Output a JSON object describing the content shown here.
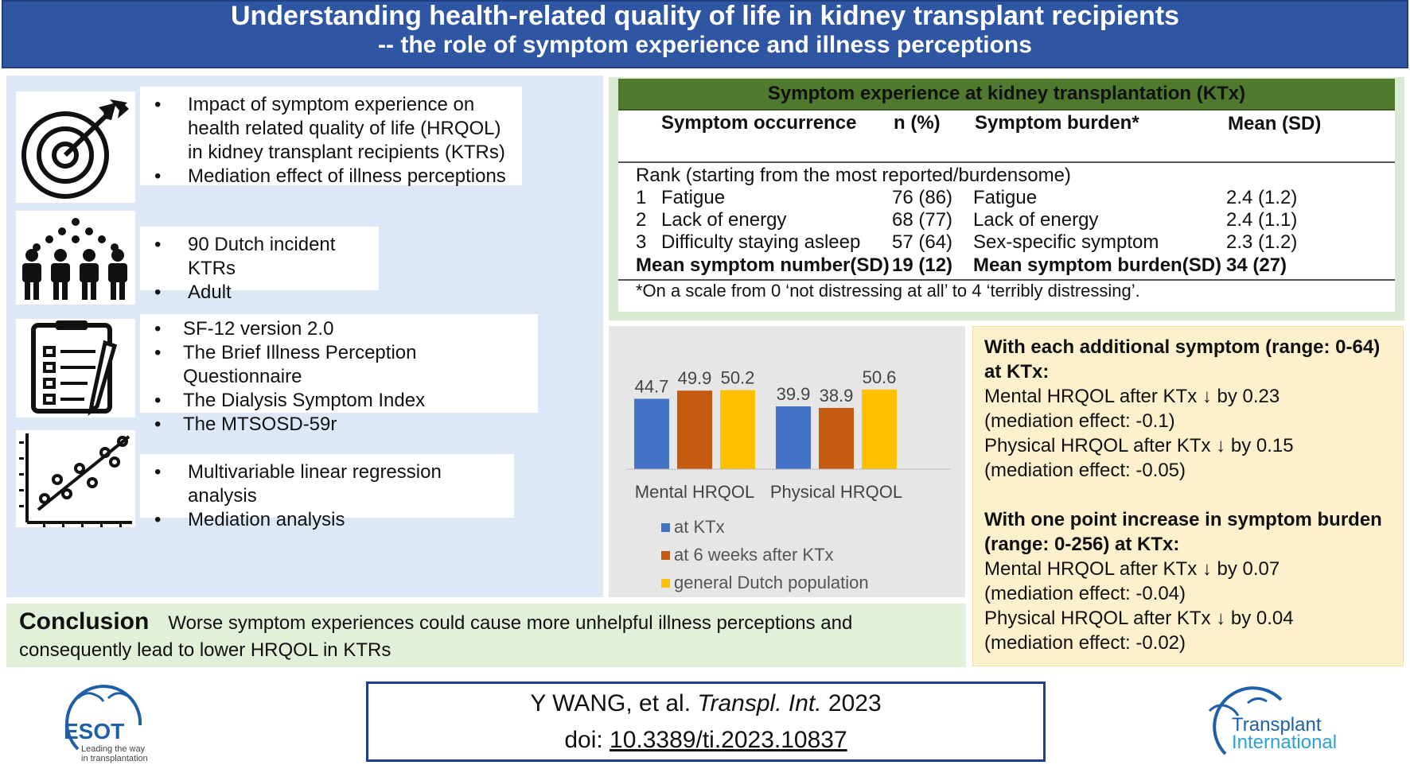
{
  "header": {
    "title_line1": "Understanding health-related quality of life in kidney transplant recipients",
    "title_line2": "-- the role of symptom experience and illness perceptions"
  },
  "left": {
    "block1": [
      "Impact of symptom experience on health related quality of life (HRQOL) in kidney transplant recipients (KTRs)",
      "Mediation effect of illness perceptions"
    ],
    "block2": [
      "90 Dutch incident KTRs",
      "Adult"
    ],
    "block3": [
      "SF-12 version 2.0",
      "The Brief Illness Perception Questionnaire",
      "The Dialysis Symptom Index",
      "The MTSOSD-59r"
    ],
    "block4": [
      "Multivariable  linear regression analysis",
      "Mediation analysis"
    ],
    "icons": [
      "target-icon",
      "people-group-icon",
      "checklist-icon",
      "scatter-plot-icon"
    ]
  },
  "symptom_table": {
    "title": "Symptom experience at kidney transplantation (KTx)",
    "headers": {
      "occurrence": "Symptom occurrence",
      "n": "n (%)",
      "burden": "Symptom burden*",
      "mean": "Mean (SD)"
    },
    "rank_note": "Rank (starting from the most reported/burdensome)",
    "rows": [
      {
        "rank": "1",
        "symptom": "Fatigue",
        "n": "76 (86)",
        "burden": "Fatigue",
        "mean": "2.4 (1.2)"
      },
      {
        "rank": "2",
        "symptom": "Lack of energy",
        "n": "68 (77)",
        "burden": "Lack of energy",
        "mean": "2.4 (1.1)"
      },
      {
        "rank": "3",
        "symptom": "Difficulty staying asleep",
        "n": "57 (64)",
        "burden": "Sex-specific symptom",
        "mean": "2.3 (1.2)"
      }
    ],
    "summary": {
      "occ_label": "Mean symptom number(SD)",
      "occ_value": "19 (12)",
      "burden_label": "Mean symptom burden(SD)",
      "burden_value": "34 (27)"
    },
    "footnote": "*On a scale from 0 ‘not distressing at all’ to 4 ‘terribly distressing’."
  },
  "chart_data": {
    "type": "bar",
    "categories": [
      "Mental HRQOL",
      "Physical HRQOL"
    ],
    "series": [
      {
        "name": "at KTx",
        "color": "#4472c4",
        "values": [
          44.7,
          39.9
        ]
      },
      {
        "name": "at 6 weeks after KTx",
        "color": "#c55a11",
        "values": [
          49.9,
          38.9
        ]
      },
      {
        "name": "general Dutch population",
        "color": "#ffc000",
        "values": [
          50.2,
          50.6
        ]
      }
    ],
    "value_labels": [
      [
        "44.7",
        "39.9"
      ],
      [
        "49.9",
        "38.9"
      ],
      [
        "50.2",
        "50.6"
      ]
    ],
    "ylim": [
      0,
      60
    ],
    "legend_position": "bottom",
    "grid": false
  },
  "results": {
    "h1": "With each additional symptom (range: 0-64) at KTx:",
    "r1a": "Mental HRQOL after KTx ↓ by 0.23",
    "r1b": "(mediation effect: -0.1)",
    "r1c": "Physical HRQOL after KTx ↓ by 0.15",
    "r1d": "(mediation effect: -0.05)",
    "h2": "With one point increase in symptom burden (range: 0-256) at KTx:",
    "r2a": "Mental HRQOL after KTx ↓ by 0.07",
    "r2b": "(mediation effect:  -0.04)",
    "r2c": "Physical HRQOL after KTx ↓ by 0.04",
    "r2d": "(mediation effect:  -0.02)"
  },
  "conclusion": {
    "label": "Conclusion",
    "text": "Worse symptom experiences could cause more unhelpful illness perceptions and consequently lead to lower HRQOL in KTRs"
  },
  "citation": {
    "authors": "Y WANG, et al.",
    "journal": "Transpl. Int.",
    "year": "2023",
    "doi_prefix": "doi:",
    "doi": "10.3389/ti.2023.10837"
  },
  "logos": {
    "esot_name": "ESOT",
    "esot_tagline_1": "Leading the way",
    "esot_tagline_2": "in transplantation",
    "ti_line1": "Transplant",
    "ti_line2": "International"
  },
  "colors": {
    "header_bg": "#2f56a2",
    "table_title_bg": "#4f7a2e",
    "left_panel_bg": "#dce8f5",
    "results_bg": "#fdf0cc",
    "conclusion_bg": "#e2efd9",
    "citation_border": "#1f3f96"
  }
}
